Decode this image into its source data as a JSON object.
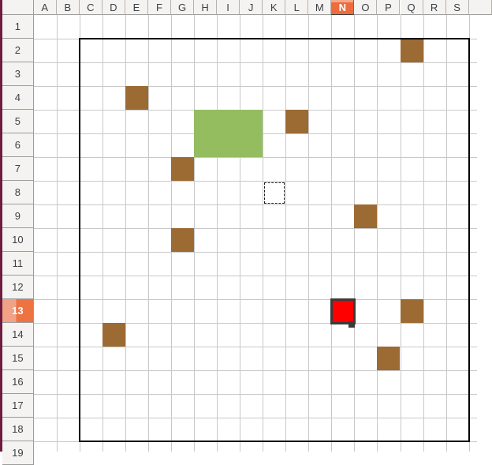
{
  "grid": {
    "corner_label": "",
    "column_headers": [
      "A",
      "B",
      "C",
      "D",
      "E",
      "F",
      "G",
      "H",
      "I",
      "J",
      "K",
      "L",
      "M",
      "N",
      "O",
      "P",
      "Q",
      "R",
      "S"
    ],
    "row_headers": [
      "1",
      "2",
      "3",
      "4",
      "5",
      "6",
      "7",
      "8",
      "9",
      "10",
      "11",
      "12",
      "13",
      "14",
      "15",
      "16",
      "17",
      "18",
      "19"
    ],
    "highlighted_column": "N",
    "highlighted_row": "13",
    "selected_cell": "N13",
    "marquee_cell": "K8",
    "outlined_range": "C2:S18",
    "filled_cells": [
      {
        "cell": "Q2",
        "color": "brown"
      },
      {
        "cell": "E4",
        "color": "brown"
      },
      {
        "cell": "H5:J6",
        "color": "green"
      },
      {
        "cell": "L5",
        "color": "brown"
      },
      {
        "cell": "G7",
        "color": "brown"
      },
      {
        "cell": "O9",
        "color": "brown"
      },
      {
        "cell": "G10",
        "color": "brown"
      },
      {
        "cell": "N13",
        "color": "red"
      },
      {
        "cell": "Q13",
        "color": "brown"
      },
      {
        "cell": "D14",
        "color": "brown"
      },
      {
        "cell": "P15",
        "color": "brown"
      }
    ],
    "colors": {
      "brown": "#9c6a33",
      "green": "#94bd5f",
      "red": "#ff0000",
      "header_highlight": "#ed6c3e",
      "header_highlight_light": "#f2a285",
      "header_bg": "#f4f3f1",
      "header_text": "#3c4146",
      "grid_line": "#c8c8c8",
      "range_border": "#000000",
      "selection_border": "#3b3b3b",
      "window_edge": "#6e1c40"
    }
  }
}
